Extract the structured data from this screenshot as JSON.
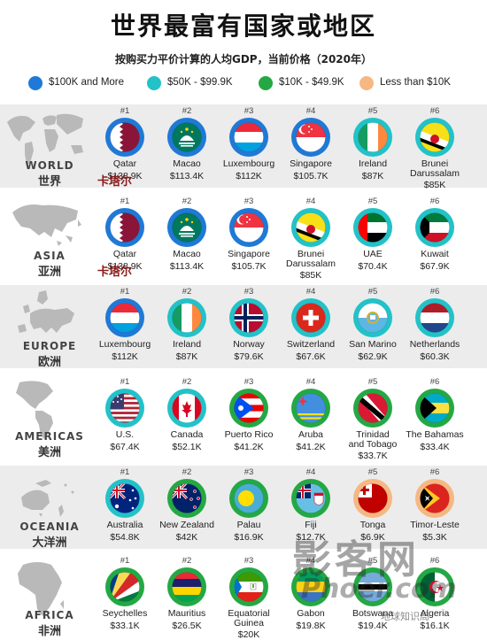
{
  "title": "世界最富有国家或地区",
  "subtitle": "按购买力平价计算的人均GDP，当前价格（2020年）",
  "colors": {
    "tier_100k": "#1f79d6",
    "tier_50k": "#22c2c8",
    "tier_10k": "#24a844",
    "tier_low": "#f6b883",
    "band_shade": "#ececec",
    "map": "#b9b9b9"
  },
  "legend": [
    {
      "label": "$100K and More",
      "color_key": "tier_100k"
    },
    {
      "label": "$50K - $99.9K",
      "color_key": "tier_50k"
    },
    {
      "label": "$10K - $49.9K",
      "color_key": "tier_10k"
    },
    {
      "label": "Less than $10K",
      "color_key": "tier_low"
    }
  ],
  "annotations": {
    "qatar_cn": "卡塔尔"
  },
  "watermark": {
    "line1": "影客网",
    "line2": "Phoer.com",
    "line3": "地球知识局"
  },
  "chart_data": {
    "type": "table",
    "unit": "USD (PPP)",
    "regions": [
      {
        "name_en": "WORLD",
        "name_zh": "世界",
        "map_icon": "world-map-icon",
        "entries": [
          {
            "rank": "#1",
            "country": "Qatar",
            "value_label": "$138.9K",
            "value": 138.9,
            "tier": "tier_100k",
            "flag": "qatar"
          },
          {
            "rank": "#2",
            "country": "Macao",
            "value_label": "$113.4K",
            "value": 113.4,
            "tier": "tier_100k",
            "flag": "macao"
          },
          {
            "rank": "#3",
            "country": "Luxembourg",
            "value_label": "$112K",
            "value": 112,
            "tier": "tier_100k",
            "flag": "luxembourg"
          },
          {
            "rank": "#4",
            "country": "Singapore",
            "value_label": "$105.7K",
            "value": 105.7,
            "tier": "tier_100k",
            "flag": "singapore"
          },
          {
            "rank": "#5",
            "country": "Ireland",
            "value_label": "$87K",
            "value": 87,
            "tier": "tier_50k",
            "flag": "ireland"
          },
          {
            "rank": "#6",
            "country": "Brunei\nDarussalam",
            "value_label": "$85K",
            "value": 85,
            "tier": "tier_50k",
            "flag": "brunei"
          }
        ]
      },
      {
        "name_en": "ASIA",
        "name_zh": "亚洲",
        "map_icon": "asia-map-icon",
        "entries": [
          {
            "rank": "#1",
            "country": "Qatar",
            "value_label": "$138.9K",
            "value": 138.9,
            "tier": "tier_100k",
            "flag": "qatar"
          },
          {
            "rank": "#2",
            "country": "Macao",
            "value_label": "$113.4K",
            "value": 113.4,
            "tier": "tier_100k",
            "flag": "macao"
          },
          {
            "rank": "#3",
            "country": "Singapore",
            "value_label": "$105.7K",
            "value": 105.7,
            "tier": "tier_100k",
            "flag": "singapore"
          },
          {
            "rank": "#4",
            "country": "Brunei\nDarussalam",
            "value_label": "$85K",
            "value": 85,
            "tier": "tier_50k",
            "flag": "brunei"
          },
          {
            "rank": "#5",
            "country": "UAE",
            "value_label": "$70.4K",
            "value": 70.4,
            "tier": "tier_50k",
            "flag": "uae"
          },
          {
            "rank": "#6",
            "country": "Kuwait",
            "value_label": "$67.9K",
            "value": 67.9,
            "tier": "tier_50k",
            "flag": "kuwait"
          }
        ]
      },
      {
        "name_en": "EUROPE",
        "name_zh": "欧洲",
        "map_icon": "europe-map-icon",
        "entries": [
          {
            "rank": "#1",
            "country": "Luxembourg",
            "value_label": "$112K",
            "value": 112,
            "tier": "tier_100k",
            "flag": "luxembourg"
          },
          {
            "rank": "#2",
            "country": "Ireland",
            "value_label": "$87K",
            "value": 87,
            "tier": "tier_50k",
            "flag": "ireland"
          },
          {
            "rank": "#3",
            "country": "Norway",
            "value_label": "$79.6K",
            "value": 79.6,
            "tier": "tier_50k",
            "flag": "norway"
          },
          {
            "rank": "#4",
            "country": "Switzerland",
            "value_label": "$67.6K",
            "value": 67.6,
            "tier": "tier_50k",
            "flag": "switzerland"
          },
          {
            "rank": "#5",
            "country": "San Marino",
            "value_label": "$62.9K",
            "value": 62.9,
            "tier": "tier_50k",
            "flag": "sanmarino"
          },
          {
            "rank": "#6",
            "country": "Netherlands",
            "value_label": "$60.3K",
            "value": 60.3,
            "tier": "tier_50k",
            "flag": "netherlands"
          }
        ]
      },
      {
        "name_en": "AMERICAS",
        "name_zh": "美洲",
        "map_icon": "americas-map-icon",
        "entries": [
          {
            "rank": "#1",
            "country": "U.S.",
            "value_label": "$67.4K",
            "value": 67.4,
            "tier": "tier_50k",
            "flag": "usa"
          },
          {
            "rank": "#2",
            "country": "Canada",
            "value_label": "$52.1K",
            "value": 52.1,
            "tier": "tier_50k",
            "flag": "canada"
          },
          {
            "rank": "#3",
            "country": "Puerto Rico",
            "value_label": "$41.2K",
            "value": 41.2,
            "tier": "tier_10k",
            "flag": "puertorico"
          },
          {
            "rank": "#4",
            "country": "Aruba",
            "value_label": "$41.2K",
            "value": 41.2,
            "tier": "tier_10k",
            "flag": "aruba"
          },
          {
            "rank": "#5",
            "country": "Trinidad\nand Tobago",
            "value_label": "$33.7K",
            "value": 33.7,
            "tier": "tier_10k",
            "flag": "trinidad"
          },
          {
            "rank": "#6",
            "country": "The Bahamas",
            "value_label": "$33.4K",
            "value": 33.4,
            "tier": "tier_10k",
            "flag": "bahamas"
          }
        ]
      },
      {
        "name_en": "OCEANIA",
        "name_zh": "大洋洲",
        "map_icon": "oceania-map-icon",
        "entries": [
          {
            "rank": "#1",
            "country": "Australia",
            "value_label": "$54.8K",
            "value": 54.8,
            "tier": "tier_50k",
            "flag": "australia"
          },
          {
            "rank": "#2",
            "country": "New Zealand",
            "value_label": "$42K",
            "value": 42,
            "tier": "tier_10k",
            "flag": "newzealand"
          },
          {
            "rank": "#3",
            "country": "Palau",
            "value_label": "$16.9K",
            "value": 16.9,
            "tier": "tier_10k",
            "flag": "palau"
          },
          {
            "rank": "#4",
            "country": "Fiji",
            "value_label": "$12.7K",
            "value": 12.7,
            "tier": "tier_10k",
            "flag": "fiji"
          },
          {
            "rank": "#5",
            "country": "Tonga",
            "value_label": "$6.9K",
            "value": 6.9,
            "tier": "tier_low",
            "flag": "tonga"
          },
          {
            "rank": "#6",
            "country": "Timor-Leste",
            "value_label": "$5.3K",
            "value": 5.3,
            "tier": "tier_low",
            "flag": "timor"
          }
        ]
      },
      {
        "name_en": "AFRICA",
        "name_zh": "非洲",
        "map_icon": "africa-map-icon",
        "entries": [
          {
            "rank": "#1",
            "country": "Seychelles",
            "value_label": "$33.1K",
            "value": 33.1,
            "tier": "tier_10k",
            "flag": "seychelles"
          },
          {
            "rank": "#2",
            "country": "Mauritius",
            "value_label": "$26.5K",
            "value": 26.5,
            "tier": "tier_10k",
            "flag": "mauritius"
          },
          {
            "rank": "#3",
            "country": "Equatorial\nGuinea",
            "value_label": "$20K",
            "value": 20,
            "tier": "tier_10k",
            "flag": "eqguinea"
          },
          {
            "rank": "#4",
            "country": "Gabon",
            "value_label": "$19.8K",
            "value": 19.8,
            "tier": "tier_10k",
            "flag": "gabon"
          },
          {
            "rank": "#5",
            "country": "Botswana",
            "value_label": "$19.4K",
            "value": 19.4,
            "tier": "tier_10k",
            "flag": "botswana"
          },
          {
            "rank": "#6",
            "country": "Algeria",
            "value_label": "$16.1K",
            "value": 16.1,
            "tier": "tier_10k",
            "flag": "algeria"
          }
        ]
      }
    ]
  }
}
